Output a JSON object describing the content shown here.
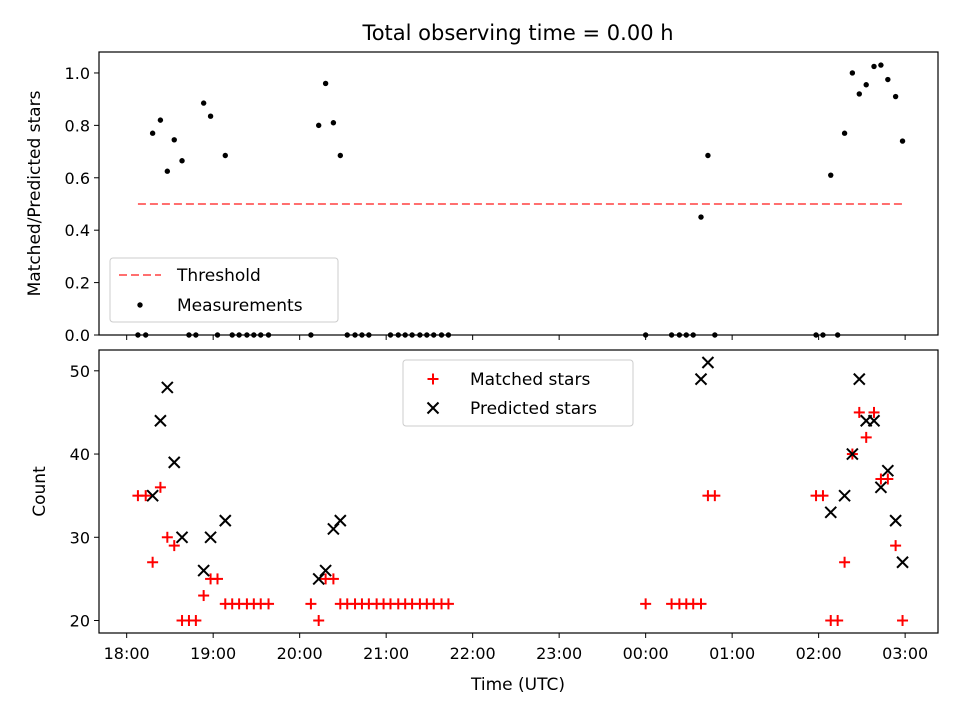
{
  "colors": {
    "threshold": "#ff6f6f",
    "measurements": "#000000",
    "matched": "#ff0000",
    "predicted": "#000000"
  },
  "chart_data": [
    {
      "type": "scatter",
      "title": "Total observing time = 0.00 h",
      "xlabel": "",
      "ylabel": "Matched/Predicted stars",
      "xlim": [
        -0.32,
        9.38
      ],
      "ylim": [
        0,
        1.08
      ],
      "yticks": [
        0.0,
        0.2,
        0.4,
        0.6,
        0.8,
        1.0
      ],
      "ytick_labels": [
        "0.0",
        "0.2",
        "0.4",
        "0.6",
        "0.8",
        "1.0"
      ],
      "grid": false,
      "legend_position": "lower-left",
      "threshold": {
        "name": "Threshold",
        "x": [
          0.13,
          8.97
        ],
        "y": 0.5
      },
      "series": [
        {
          "name": "Measurements",
          "marker": "dot",
          "x": [
            0.13,
            0.22,
            0.3,
            0.39,
            0.47,
            0.55,
            0.64,
            0.72,
            0.8,
            0.89,
            0.97,
            1.05,
            1.14,
            1.22,
            1.3,
            1.39,
            1.47,
            1.55,
            1.64,
            2.13,
            2.22,
            2.3,
            2.39,
            2.47,
            2.55,
            2.64,
            2.72,
            2.8,
            3.05,
            3.14,
            3.22,
            3.3,
            3.39,
            3.47,
            3.55,
            3.64,
            3.72,
            6.0,
            6.3,
            6.39,
            6.47,
            6.55,
            6.64,
            6.72,
            6.8,
            7.97,
            8.05,
            8.14,
            8.22,
            8.3,
            8.39,
            8.47,
            8.55,
            8.64,
            8.72,
            8.8,
            8.89,
            8.97
          ],
          "y": [
            0,
            0,
            0.77,
            0.82,
            0.625,
            0.745,
            0.665,
            0,
            0,
            0.885,
            0.835,
            0,
            0.685,
            0,
            0,
            0,
            0,
            0,
            0,
            0,
            0.8,
            0.96,
            0.81,
            0.685,
            0,
            0,
            0,
            0,
            0,
            0,
            0,
            0,
            0,
            0,
            0,
            0,
            0,
            0,
            0,
            0,
            0,
            0,
            0.45,
            0.685,
            0,
            0,
            0,
            0.61,
            0,
            0.77,
            1.0,
            0.92,
            0.955,
            1.025,
            1.03,
            0.975,
            0.91,
            0.74
          ]
        }
      ]
    },
    {
      "type": "scatter",
      "title": "",
      "xlabel": "Time (UTC)",
      "ylabel": "Count",
      "xlim": [
        -0.32,
        9.38
      ],
      "ylim": [
        18.5,
        52.5
      ],
      "yticks": [
        20,
        30,
        40,
        50
      ],
      "ytick_labels": [
        "20",
        "30",
        "40",
        "50"
      ],
      "xticks": [
        0,
        1,
        2,
        3,
        4,
        5,
        6,
        7,
        8,
        9
      ],
      "xtick_labels": [
        "18:00",
        "19:00",
        "20:00",
        "21:00",
        "22:00",
        "23:00",
        "00:00",
        "01:00",
        "02:00",
        "03:00"
      ],
      "grid": false,
      "legend_position": "upper-center",
      "series": [
        {
          "name": "Matched stars",
          "marker": "plus",
          "x": [
            0.13,
            0.22,
            0.3,
            0.39,
            0.47,
            0.55,
            0.64,
            0.72,
            0.8,
            0.89,
            0.97,
            1.05,
            1.14,
            1.22,
            1.3,
            1.39,
            1.47,
            1.55,
            1.64,
            2.13,
            2.22,
            2.3,
            2.39,
            2.47,
            2.55,
            2.64,
            2.72,
            2.8,
            2.89,
            2.97,
            3.05,
            3.14,
            3.22,
            3.3,
            3.39,
            3.47,
            3.55,
            3.64,
            3.72,
            6.0,
            6.3,
            6.39,
            6.47,
            6.55,
            6.64,
            6.72,
            6.8,
            7.97,
            8.05,
            8.14,
            8.22,
            8.3,
            8.39,
            8.47,
            8.55,
            8.64,
            8.72,
            8.8,
            8.89,
            8.97
          ],
          "y": [
            35,
            35,
            27,
            36,
            30,
            29,
            20,
            20,
            20,
            23,
            25,
            25,
            22,
            22,
            22,
            22,
            22,
            22,
            22,
            22,
            20,
            25,
            25,
            22,
            22,
            22,
            22,
            22,
            22,
            22,
            22,
            22,
            22,
            22,
            22,
            22,
            22,
            22,
            22,
            22,
            22,
            22,
            22,
            22,
            22,
            35,
            35,
            35,
            35,
            20,
            20,
            27,
            40,
            45,
            42,
            45,
            37,
            37,
            29,
            20
          ]
        },
        {
          "name": "Predicted stars",
          "marker": "x",
          "x": [
            0.3,
            0.39,
            0.47,
            0.55,
            0.64,
            0.89,
            0.97,
            1.14,
            2.22,
            2.3,
            2.39,
            2.47,
            6.64,
            6.72,
            8.14,
            8.3,
            8.39,
            8.47,
            8.55,
            8.64,
            8.72,
            8.8,
            8.89,
            8.97
          ],
          "y": [
            35,
            44,
            48,
            39,
            30,
            26,
            30,
            32,
            25,
            26,
            31,
            32,
            49,
            51,
            33,
            35,
            40,
            49,
            44,
            44,
            36,
            38,
            32,
            27
          ]
        }
      ]
    }
  ]
}
